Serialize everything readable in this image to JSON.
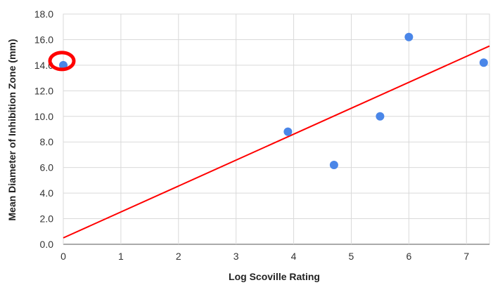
{
  "chart_data": {
    "type": "scatter",
    "title": "",
    "xlabel": "Log Scoville Rating",
    "ylabel": "Mean Diameter of Inhibition Zone (mm)",
    "xlim": [
      0,
      7.4
    ],
    "ylim": [
      0,
      18
    ],
    "xticks": [
      "0",
      "1",
      "2",
      "3",
      "4",
      "5",
      "6",
      "7"
    ],
    "yticks": [
      "0.0",
      "2.0",
      "4.0",
      "6.0",
      "8.0",
      "10.0",
      "12.0",
      "14.0",
      "16.0",
      "18.0"
    ],
    "grid": true,
    "legend": "none",
    "series": [
      {
        "points": [
          {
            "x": 0,
            "y": 14.0
          },
          {
            "x": 3.9,
            "y": 8.8
          },
          {
            "x": 4.7,
            "y": 6.2
          },
          {
            "x": 5.5,
            "y": 10.0
          },
          {
            "x": 6.0,
            "y": 16.2
          },
          {
            "x": 7.3,
            "y": 14.2
          }
        ],
        "color": "#4a86e8"
      }
    ],
    "trendline": {
      "x": [
        0,
        7.4
      ],
      "y": [
        0.5,
        15.5
      ],
      "color": "#ff0000"
    },
    "annotations": [
      {
        "type": "ellipse-highlight",
        "target_point": 0,
        "color": "#ff0000"
      }
    ]
  }
}
